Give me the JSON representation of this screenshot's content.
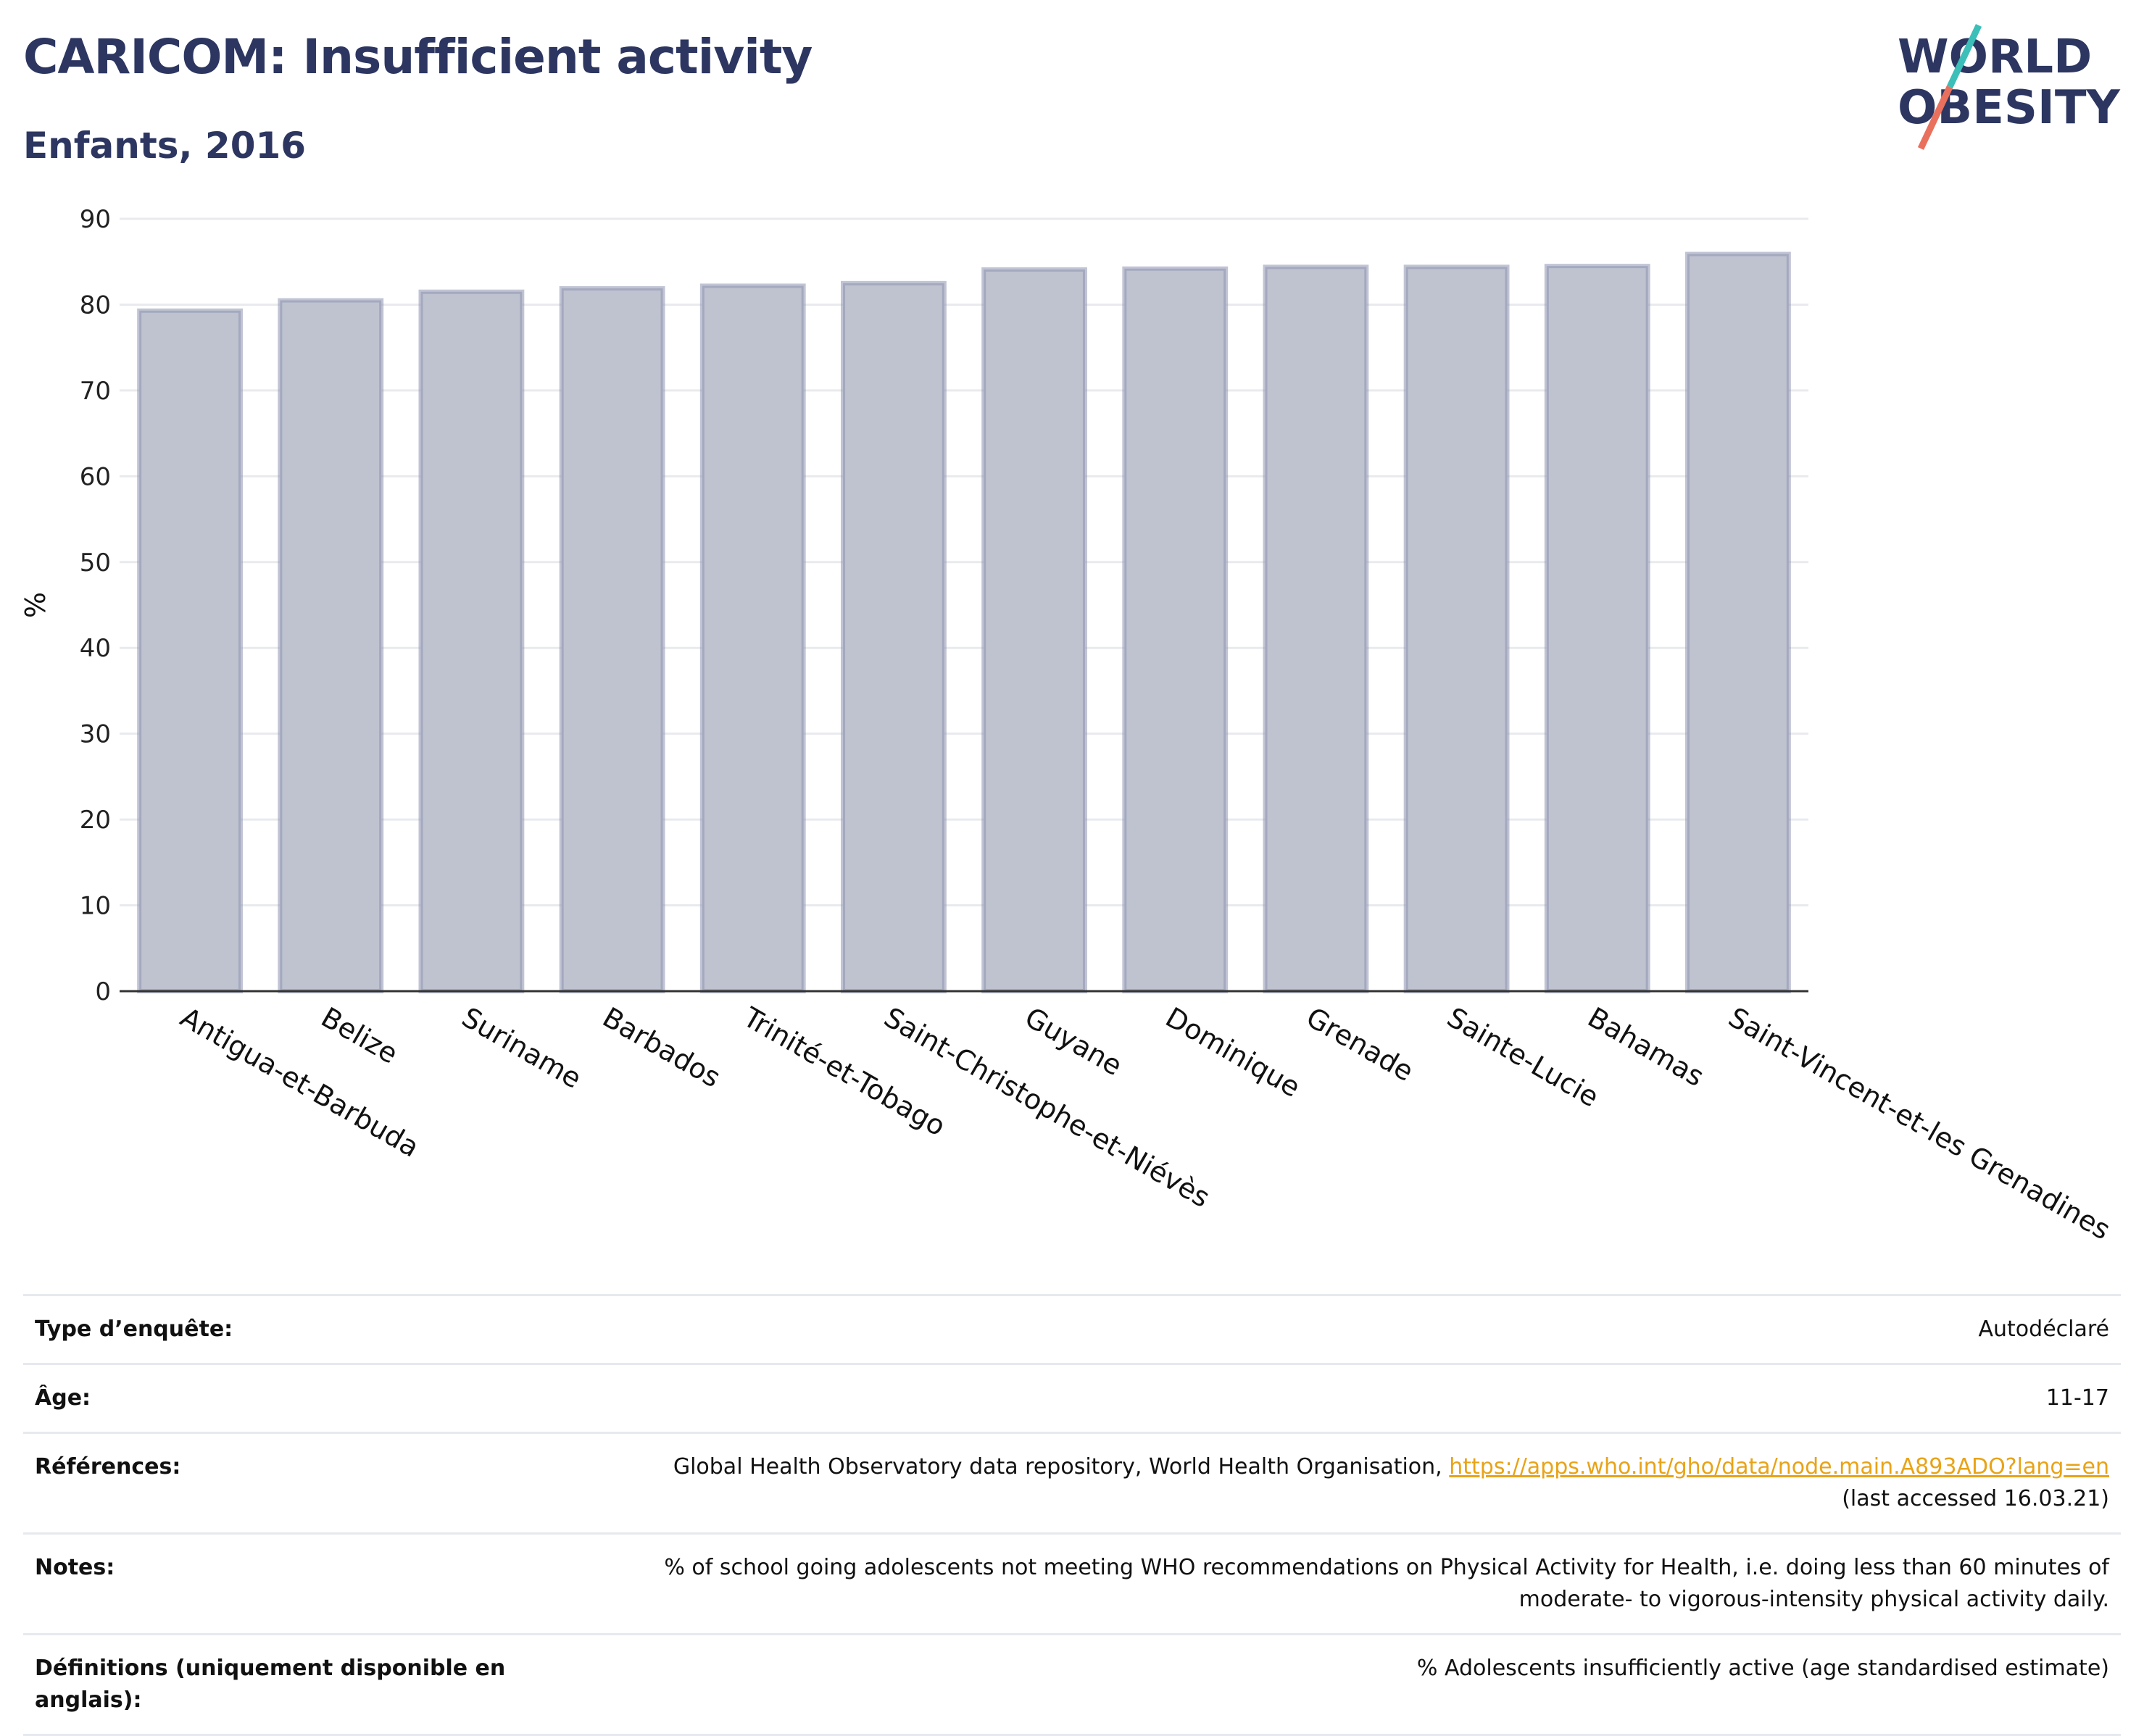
{
  "header": {
    "title": "CARICOM: Insufficient activity",
    "subtitle": "Enfants, 2016",
    "logo_line1": "WORLD",
    "logo_line2": "OBESITY"
  },
  "colors": {
    "bar_fill": "#bfc3d0",
    "bar_stroke": "#8e94b0",
    "title": "#2c3660",
    "logo_teal": "#3bbfb8",
    "logo_coral": "#e8705d",
    "link": "#e8a317"
  },
  "chart_data": {
    "type": "bar",
    "title": "CARICOM: Insufficient activity",
    "subtitle": "Enfants, 2016",
    "xlabel": "",
    "ylabel": "%",
    "ylim": [
      0,
      90
    ],
    "yticks": [
      0,
      10,
      20,
      30,
      40,
      50,
      60,
      70,
      80,
      90
    ],
    "grid": true,
    "categories": [
      "Antigua-et-Barbuda",
      "Belize",
      "Suriname",
      "Barbados",
      "Trinité-et-Tobago",
      "Saint-Christophe-et-Niévès",
      "Guyane",
      "Dominique",
      "Grenade",
      "Sainte-Lucie",
      "Bahamas",
      "Saint-Vincent-et-les Grenadines"
    ],
    "values": [
      79.3,
      80.5,
      81.5,
      81.9,
      82.2,
      82.5,
      84.1,
      84.2,
      84.4,
      84.4,
      84.5,
      85.9
    ]
  },
  "meta": [
    {
      "key": "Type d’enquête:",
      "value": "Autodéclaré"
    },
    {
      "key": "Âge:",
      "value": "11-17"
    },
    {
      "key": "Références:",
      "value": "Global Health Observatory data repository, World Health Organisation,",
      "link": "https://apps.who.int/gho/data/node.main.A893ADO?lang=en",
      "value2": "(last accessed 16.03.21)"
    },
    {
      "key": "Notes:",
      "value": "% of school going adolescents not meeting WHO recommendations on Physical Activity for Health, i.e. doing less than 60 minutes of",
      "value2": "moderate- to vigorous-intensity physical activity daily."
    },
    {
      "key": "Définitions (uniquement disponible en anglais):",
      "value": "% Adolescents insufficiently active (age standardised estimate)"
    }
  ]
}
